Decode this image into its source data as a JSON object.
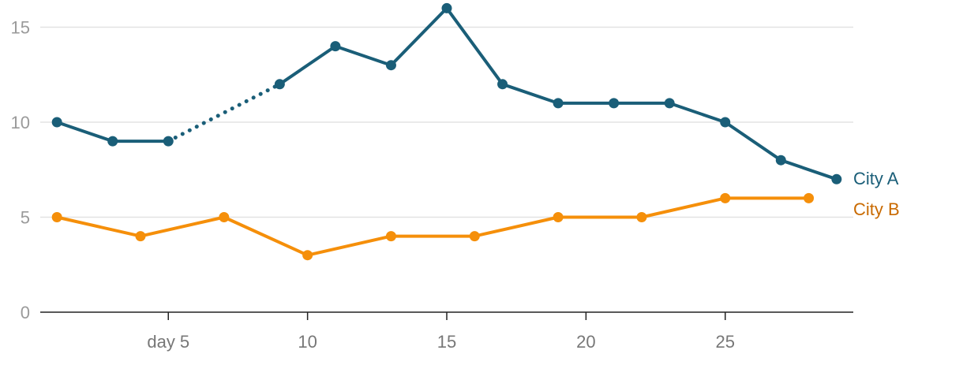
{
  "chart_data": {
    "type": "line",
    "x_tick_labels": [
      {
        "x": 5,
        "label": "day 5"
      },
      {
        "x": 10,
        "label": "10"
      },
      {
        "x": 15,
        "label": "15"
      },
      {
        "x": 20,
        "label": "20"
      },
      {
        "x": 25,
        "label": "25"
      }
    ],
    "y_tick_labels": [
      {
        "y": 0,
        "label": "0"
      },
      {
        "y": 5,
        "label": "5"
      },
      {
        "y": 10,
        "label": "10"
      },
      {
        "y": 15,
        "label": "15"
      }
    ],
    "xlim": [
      0.4,
      29.6
    ],
    "ylim": [
      0,
      16.1
    ],
    "grid": {
      "horizontal": true,
      "vertical": false
    },
    "legend": "direct labels at right end of lines",
    "series": [
      {
        "name": "City A",
        "color": "#1a5e78",
        "label_color": "#1a5e78",
        "points": [
          {
            "x": 1,
            "y": 10
          },
          {
            "x": 3,
            "y": 9
          },
          {
            "x": 5,
            "y": 9
          },
          {
            "x": 9,
            "y": 12
          },
          {
            "x": 11,
            "y": 14
          },
          {
            "x": 13,
            "y": 13
          },
          {
            "x": 15,
            "y": 16
          },
          {
            "x": 17,
            "y": 12
          },
          {
            "x": 19,
            "y": 11
          },
          {
            "x": 21,
            "y": 11
          },
          {
            "x": 23,
            "y": 11
          },
          {
            "x": 25,
            "y": 10
          },
          {
            "x": 27,
            "y": 8
          },
          {
            "x": 29,
            "y": 7
          }
        ],
        "dashed_segments": [
          [
            5,
            9
          ]
        ]
      },
      {
        "name": "City B",
        "color": "#f58f0a",
        "label_color": "#c96a00",
        "points": [
          {
            "x": 1,
            "y": 5
          },
          {
            "x": 4,
            "y": 4
          },
          {
            "x": 7,
            "y": 5
          },
          {
            "x": 10,
            "y": 3
          },
          {
            "x": 13,
            "y": 4
          },
          {
            "x": 16,
            "y": 4
          },
          {
            "x": 19,
            "y": 5
          },
          {
            "x": 22,
            "y": 5
          },
          {
            "x": 25,
            "y": 6
          },
          {
            "x": 28,
            "y": 6
          }
        ],
        "dashed_segments": []
      }
    ]
  }
}
